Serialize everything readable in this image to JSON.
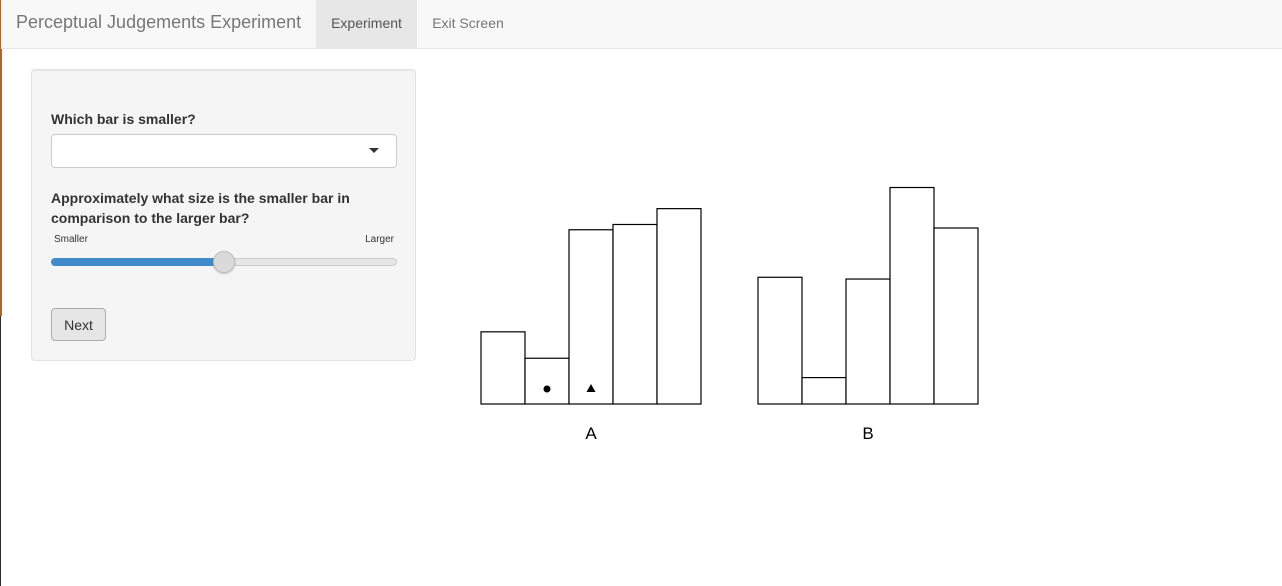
{
  "navbar": {
    "brand": "Perceptual Judgements Experiment",
    "tabs": [
      {
        "label": "Experiment",
        "active": true
      },
      {
        "label": "Exit Screen",
        "active": false
      }
    ]
  },
  "form": {
    "question1": "Which bar is smaller?",
    "select_value": "",
    "question2": "Approximately what size is the smaller bar in comparison to the larger bar?",
    "slider": {
      "min_label": "Smaller",
      "max_label": "Larger",
      "value_fraction": 0.5
    },
    "next_label": "Next"
  },
  "colors": {
    "accent": "#428bca",
    "navbar_bg": "#f8f8f8",
    "panel_bg": "#f5f5f5"
  },
  "chart_data": [
    {
      "type": "bar",
      "label": "A",
      "categories": [
        "1",
        "2",
        "3",
        "4",
        "5"
      ],
      "values": [
        41,
        26,
        99,
        102,
        111
      ],
      "ylim": [
        0,
        125
      ],
      "markers": [
        {
          "category_index": 1,
          "shape": "circle"
        },
        {
          "category_index": 2,
          "shape": "triangle"
        }
      ]
    },
    {
      "type": "bar",
      "label": "B",
      "categories": [
        "1",
        "2",
        "3",
        "4",
        "5"
      ],
      "values": [
        72,
        15,
        71,
        123,
        100
      ],
      "ylim": [
        0,
        125
      ],
      "markers": []
    }
  ]
}
